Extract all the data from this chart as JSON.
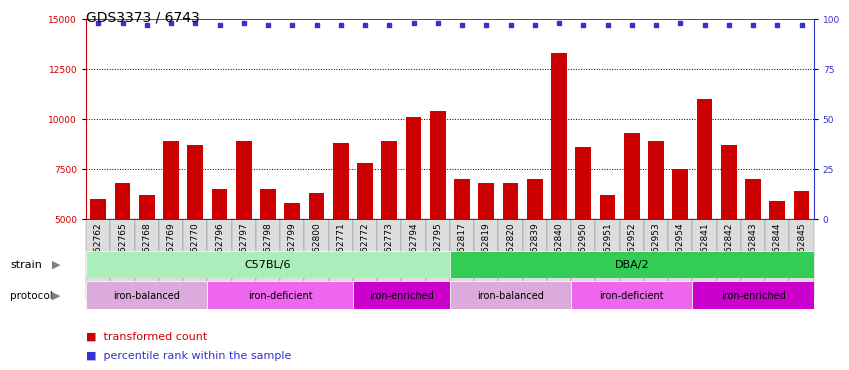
{
  "title": "GDS3373 / 6743",
  "samples": [
    "GSM262762",
    "GSM262765",
    "GSM262768",
    "GSM262769",
    "GSM262770",
    "GSM262796",
    "GSM262797",
    "GSM262798",
    "GSM262799",
    "GSM262800",
    "GSM262771",
    "GSM262772",
    "GSM262773",
    "GSM262794",
    "GSM262795",
    "GSM262817",
    "GSM262819",
    "GSM262820",
    "GSM262839",
    "GSM262840",
    "GSM262950",
    "GSM262951",
    "GSM262952",
    "GSM262953",
    "GSM262954",
    "GSM262841",
    "GSM262842",
    "GSM262843",
    "GSM262844",
    "GSM262845"
  ],
  "bar_values": [
    6000,
    6800,
    6200,
    8900,
    8700,
    6500,
    8900,
    6500,
    5800,
    6300,
    8800,
    7800,
    8900,
    10100,
    10400,
    7000,
    6800,
    6800,
    7000,
    13300,
    8600,
    6200,
    9300,
    8900,
    7500,
    11000,
    8700,
    7000,
    5900,
    6400
  ],
  "percentile_values": [
    98,
    98,
    97,
    98,
    98,
    97,
    98,
    97,
    97,
    97,
    97,
    97,
    97,
    98,
    98,
    97,
    97,
    97,
    97,
    98,
    97,
    97,
    97,
    97,
    98,
    97,
    97,
    97,
    97,
    97
  ],
  "ylim": [
    5000,
    15000
  ],
  "y2lim": [
    0,
    100
  ],
  "yticks": [
    5000,
    7500,
    10000,
    12500,
    15000
  ],
  "y2ticks": [
    0,
    25,
    50,
    75,
    100
  ],
  "grid_values": [
    7500,
    10000,
    12500
  ],
  "bar_color": "#CC0000",
  "dot_color": "#3333CC",
  "strain_c57": {
    "label": "C57BL/6",
    "start": 0,
    "end": 15,
    "color": "#AAEEBB"
  },
  "strain_dba": {
    "label": "DBA/2",
    "start": 15,
    "end": 30,
    "color": "#33CC55"
  },
  "protocol_groups": [
    {
      "label": "iron-balanced",
      "start": 0,
      "end": 5,
      "color": "#DDAADD"
    },
    {
      "label": "iron-deficient",
      "start": 5,
      "end": 11,
      "color": "#EE66EE"
    },
    {
      "label": "iron-enriched",
      "start": 11,
      "end": 15,
      "color": "#CC00CC"
    },
    {
      "label": "iron-balanced",
      "start": 15,
      "end": 20,
      "color": "#DDAADD"
    },
    {
      "label": "iron-deficient",
      "start": 20,
      "end": 25,
      "color": "#EE66EE"
    },
    {
      "label": "iron-enriched",
      "start": 25,
      "end": 30,
      "color": "#CC00CC"
    }
  ],
  "bg_color": "#FFFFFF",
  "tick_bg_color": "#DDDDDD",
  "title_fontsize": 10,
  "tick_fontsize": 6.5,
  "label_fontsize": 8,
  "bar_width": 0.65
}
